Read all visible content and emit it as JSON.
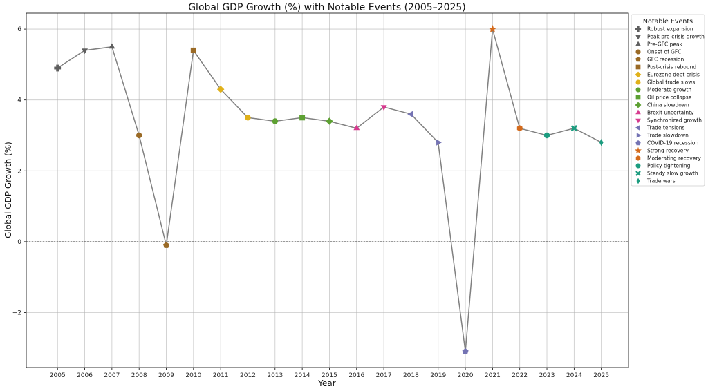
{
  "chart_data": {
    "type": "line",
    "title": "Global GDP Growth (%) with Notable Events (2005–2025)",
    "xlabel": "Year",
    "ylabel": "Global GDP Growth (%)",
    "xlim": [
      2003.85,
      2026.0
    ],
    "ylim": [
      -3.55,
      6.45
    ],
    "yticks": [
      -2,
      0,
      2,
      4,
      6
    ],
    "yticklabels": [
      "−2",
      "0",
      "2",
      "4",
      "6"
    ],
    "grid": true,
    "zero_line": true,
    "line_color": "#808080",
    "legend_title": "Notable Events",
    "legend_position": "outside-right",
    "points": [
      {
        "year": 2005,
        "value": 4.9,
        "event": "Robust expansion",
        "marker": "plus",
        "color": "#5f5f5f"
      },
      {
        "year": 2006,
        "value": 5.4,
        "event": "Peak pre-crisis growth",
        "marker": "triangle-down",
        "color": "#5f5f5f"
      },
      {
        "year": 2007,
        "value": 5.5,
        "event": "Pre-GFC peak",
        "marker": "triangle-up",
        "color": "#5f5f5f"
      },
      {
        "year": 2008,
        "value": 3.0,
        "event": "Onset of GFC",
        "marker": "circle",
        "color": "#9a6a26"
      },
      {
        "year": 2009,
        "value": -0.1,
        "event": "GFC recession",
        "marker": "pentagon",
        "color": "#9a6a26"
      },
      {
        "year": 2010,
        "value": 5.4,
        "event": "Post-crisis rebound",
        "marker": "square",
        "color": "#9a6a26"
      },
      {
        "year": 2011,
        "value": 4.3,
        "event": "Eurozone debt crisis",
        "marker": "diamond",
        "color": "#e0b11a"
      },
      {
        "year": 2012,
        "value": 3.5,
        "event": "Global trade slows",
        "marker": "circle",
        "color": "#e0b11a"
      },
      {
        "year": 2013,
        "value": 3.4,
        "event": "Moderate growth",
        "marker": "circle",
        "color": "#5da032"
      },
      {
        "year": 2014,
        "value": 3.5,
        "event": "Oil price collapse",
        "marker": "square",
        "color": "#5da032"
      },
      {
        "year": 2015,
        "value": 3.4,
        "event": "China slowdown",
        "marker": "diamond",
        "color": "#5da032"
      },
      {
        "year": 2016,
        "value": 3.2,
        "event": "Brexit uncertainty",
        "marker": "triangle-up",
        "color": "#d63a8e"
      },
      {
        "year": 2017,
        "value": 3.8,
        "event": "Synchronized growth",
        "marker": "triangle-down",
        "color": "#d63a8e"
      },
      {
        "year": 2018,
        "value": 3.6,
        "event": "Trade tensions",
        "marker": "triangle-left",
        "color": "#7473b3"
      },
      {
        "year": 2019,
        "value": 2.8,
        "event": "Trade slowdown",
        "marker": "triangle-right",
        "color": "#7473b3"
      },
      {
        "year": 2020,
        "value": -3.1,
        "event": "COVID-19 recession",
        "marker": "pentagon",
        "color": "#7473b3"
      },
      {
        "year": 2021,
        "value": 6.0,
        "event": "Strong recovery",
        "marker": "star",
        "color": "#d46a1b"
      },
      {
        "year": 2022,
        "value": 3.2,
        "event": "Moderating recovery",
        "marker": "hexagon",
        "color": "#d46a1b"
      },
      {
        "year": 2023,
        "value": 3.0,
        "event": "Policy tightening",
        "marker": "circle",
        "color": "#1c9c7f"
      },
      {
        "year": 2024,
        "value": 3.2,
        "event": "Steady slow growth",
        "marker": "x",
        "color": "#1c9c7f"
      },
      {
        "year": 2025,
        "value": 2.8,
        "event": "Trade wars",
        "marker": "thin-diamond",
        "color": "#1c9c7f"
      }
    ]
  }
}
